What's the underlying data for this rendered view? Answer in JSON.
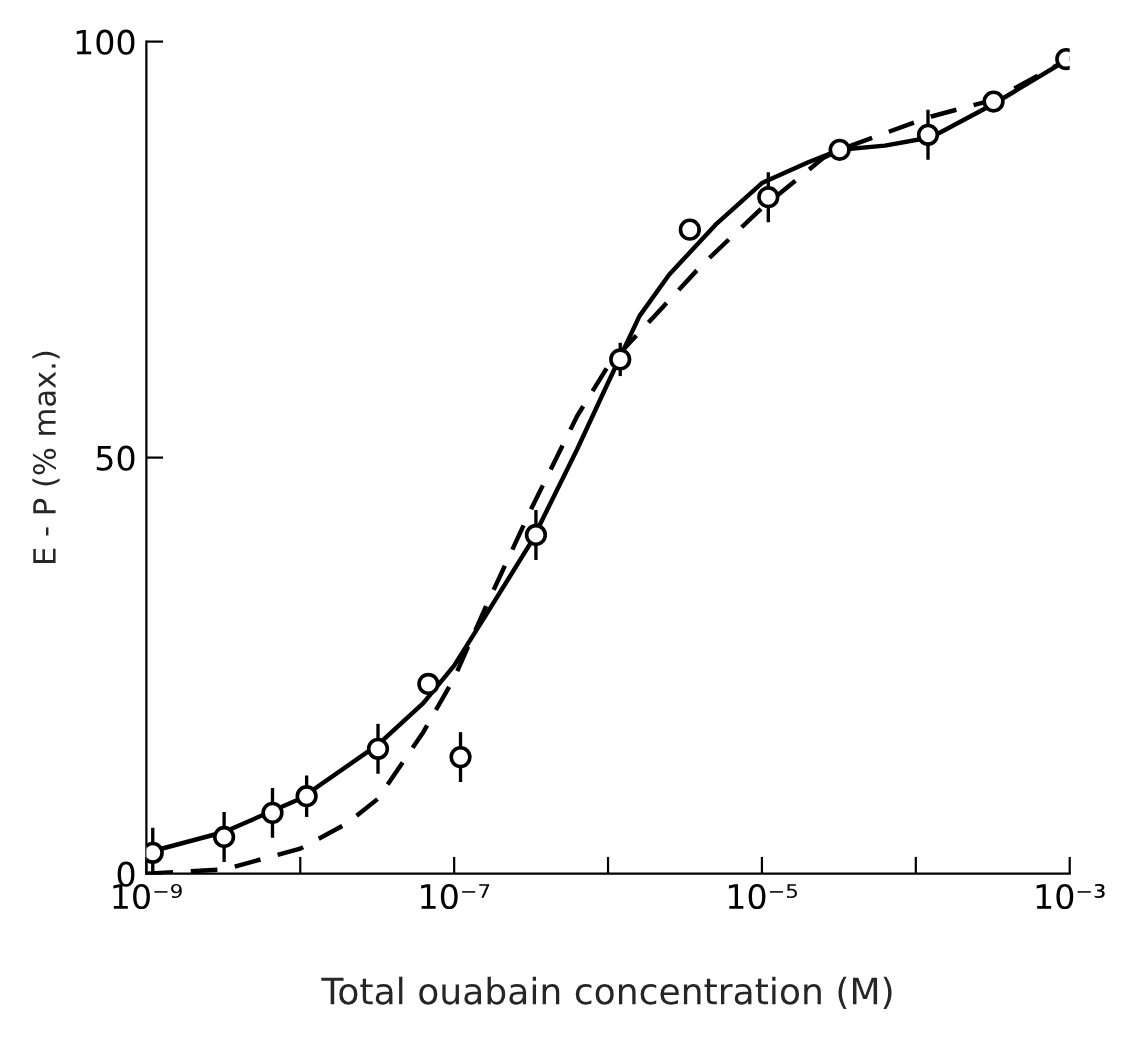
{
  "chart_data": {
    "type": "scatter",
    "xlabel": "Total ouabain concentration (M)",
    "ylabel": "E - P (% max.)",
    "log": "x",
    "xlim": [
      1e-09,
      0.001
    ],
    "ylim": [
      0,
      100
    ],
    "xticks": [
      {
        "value": 1e-09,
        "label": "10⁻⁹"
      },
      {
        "value": 1e-08,
        "label": null
      },
      {
        "value": 1e-07,
        "label": "10⁻⁷"
      },
      {
        "value": 1e-06,
        "label": null
      },
      {
        "value": 1e-05,
        "label": "10⁻⁵"
      },
      {
        "value": 0.0001,
        "label": null
      },
      {
        "value": 0.001,
        "label": "10⁻³"
      }
    ],
    "yticks": [
      0,
      50,
      100
    ],
    "grid": false,
    "legend": false,
    "marker": "circle",
    "series": [
      {
        "color": "#000000",
        "x": [
          1.1e-09,
          3.2e-09,
          6.6e-09,
          1.1e-08,
          3.2e-08,
          6.8e-08,
          1.1e-07,
          3.4e-07,
          1.2e-06,
          3.4e-06,
          1.1e-05,
          3.2e-05,
          0.00012,
          0.00032,
          0.00095
        ],
        "values": [
          2.5,
          4.4,
          7.3,
          9.3,
          15,
          22.8,
          14,
          40.7,
          61.8,
          77.4,
          81.3,
          87,
          88.8,
          92.8,
          97.9
        ],
        "errors": [
          3,
          3,
          3,
          2.5,
          3,
          null,
          3,
          3,
          2,
          null,
          3,
          null,
          3,
          null,
          null
        ]
      },
      {
        "type": "line",
        "color": "#000000",
        "marker": "none",
        "line_style": "solid",
        "x": [
          1e-09,
          3.2e-09,
          1e-08,
          3.2e-08,
          6.3e-08,
          1e-07,
          1.6e-07,
          3.2e-07,
          6.3e-07,
          1e-06,
          1.6e-06,
          2.5e-06,
          5e-06,
          1e-05,
          2e-05,
          3.2e-05,
          6.3e-05,
          0.000126,
          0.00032,
          0.001
        ],
        "values": [
          2.5,
          5,
          9,
          15.5,
          20.5,
          25,
          31,
          40,
          51,
          59,
          67,
          72,
          78,
          83,
          85.5,
          87,
          87.5,
          88.5,
          92.5,
          98
        ]
      },
      {
        "type": "line",
        "color": "#000000",
        "marker": "none",
        "line_style": "dashed",
        "x": [
          1e-09,
          3.2e-09,
          1e-08,
          2e-08,
          3.2e-08,
          6.3e-08,
          1e-07,
          1.6e-07,
          3.2e-07,
          6.3e-07,
          1e-06,
          2e-06,
          4e-06,
          1e-05,
          2.5e-05,
          3.2e-05,
          6.3e-05,
          0.000126,
          0.00032,
          0.001
        ],
        "values": [
          0,
          0.5,
          3,
          6,
          9,
          17,
          23.5,
          32,
          44,
          55,
          61,
          67,
          73,
          80,
          86,
          87,
          89,
          91,
          93,
          98
        ]
      }
    ]
  }
}
